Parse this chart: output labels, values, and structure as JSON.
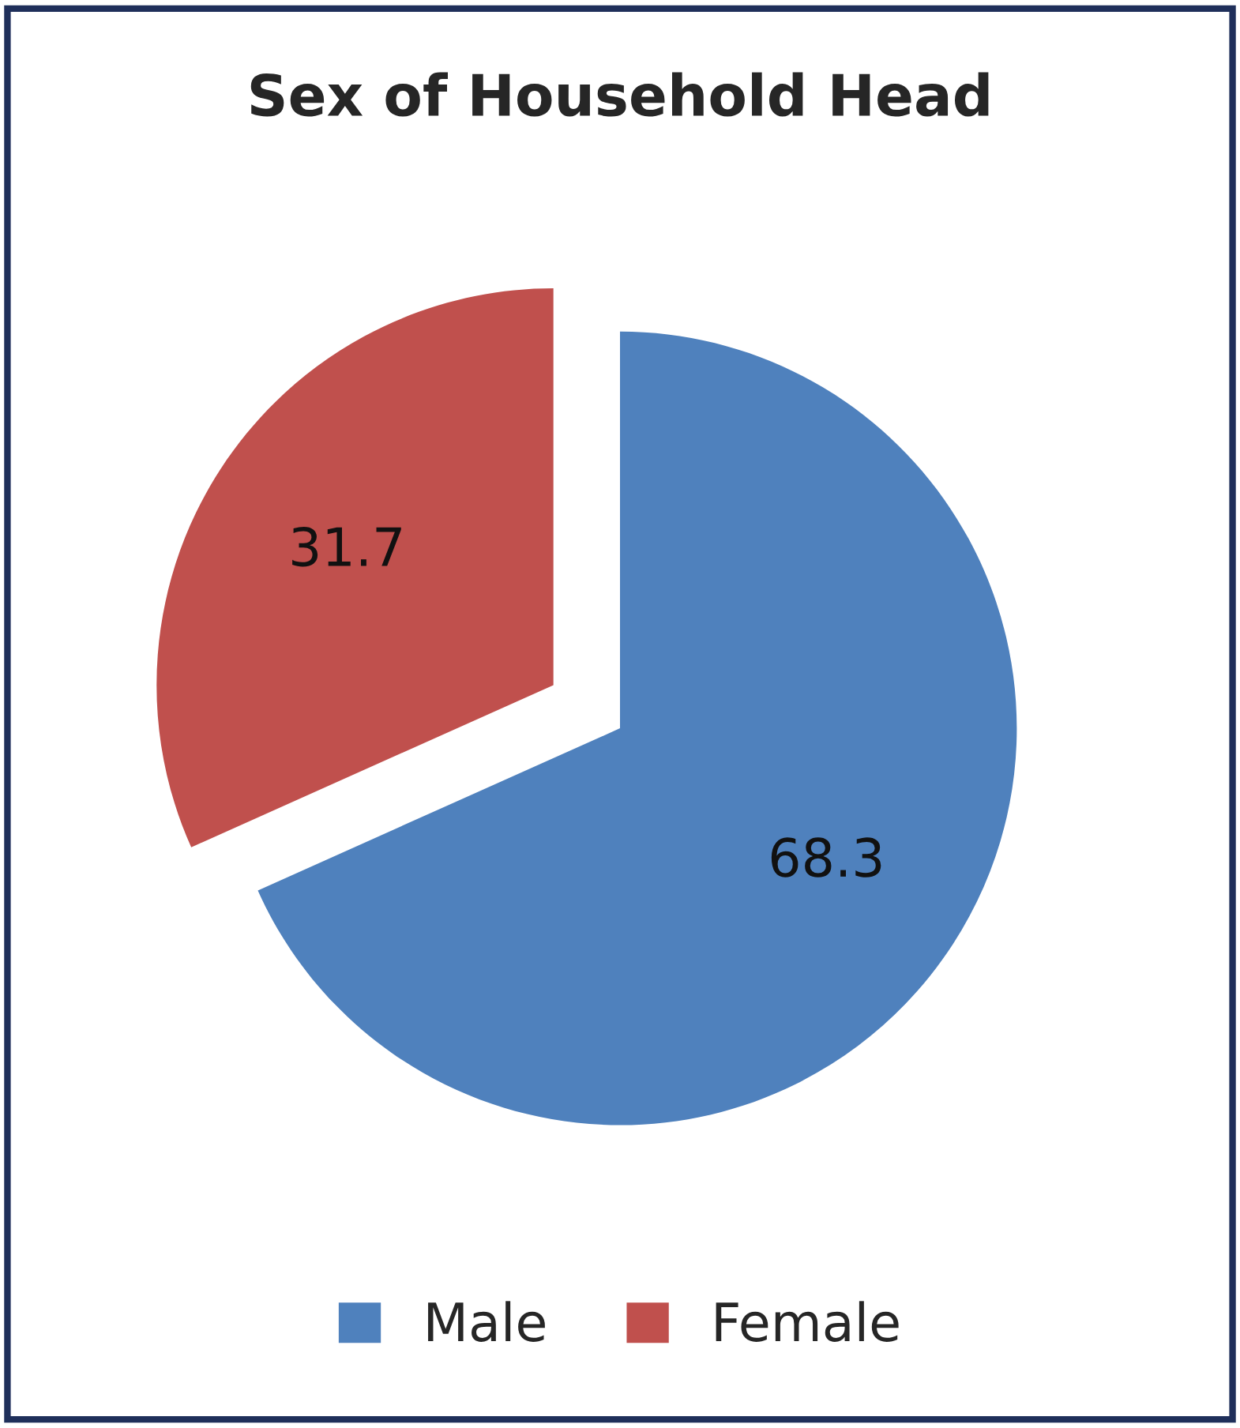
{
  "chart_data": {
    "type": "pie",
    "title": "Sex of Household Head",
    "categories": [
      "Male",
      "Female"
    ],
    "values": [
      68.3,
      31.7
    ],
    "colors": [
      "#4f81bd",
      "#c0504d"
    ],
    "data_labels": true,
    "legend": "bottom"
  }
}
